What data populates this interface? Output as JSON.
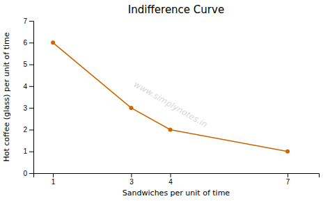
{
  "chart_data": {
    "type": "line",
    "title": "Indifference Curve",
    "xlabel": "Sandwiches per unit of time",
    "ylabel": "Hot coffee (glass) per unit of time",
    "x": [
      1,
      3,
      4,
      7
    ],
    "values": [
      6,
      3,
      2,
      1
    ],
    "color": "#CC6600",
    "marker": "circle",
    "xlim": [
      0.5,
      7.8
    ],
    "ylim": [
      0,
      7
    ],
    "xticks": [
      1,
      3,
      4,
      7
    ],
    "yticks": [
      0,
      1,
      2,
      3,
      4,
      5,
      6,
      7
    ],
    "grid": false,
    "annotations": [
      "www.simplynotes.in"
    ]
  }
}
